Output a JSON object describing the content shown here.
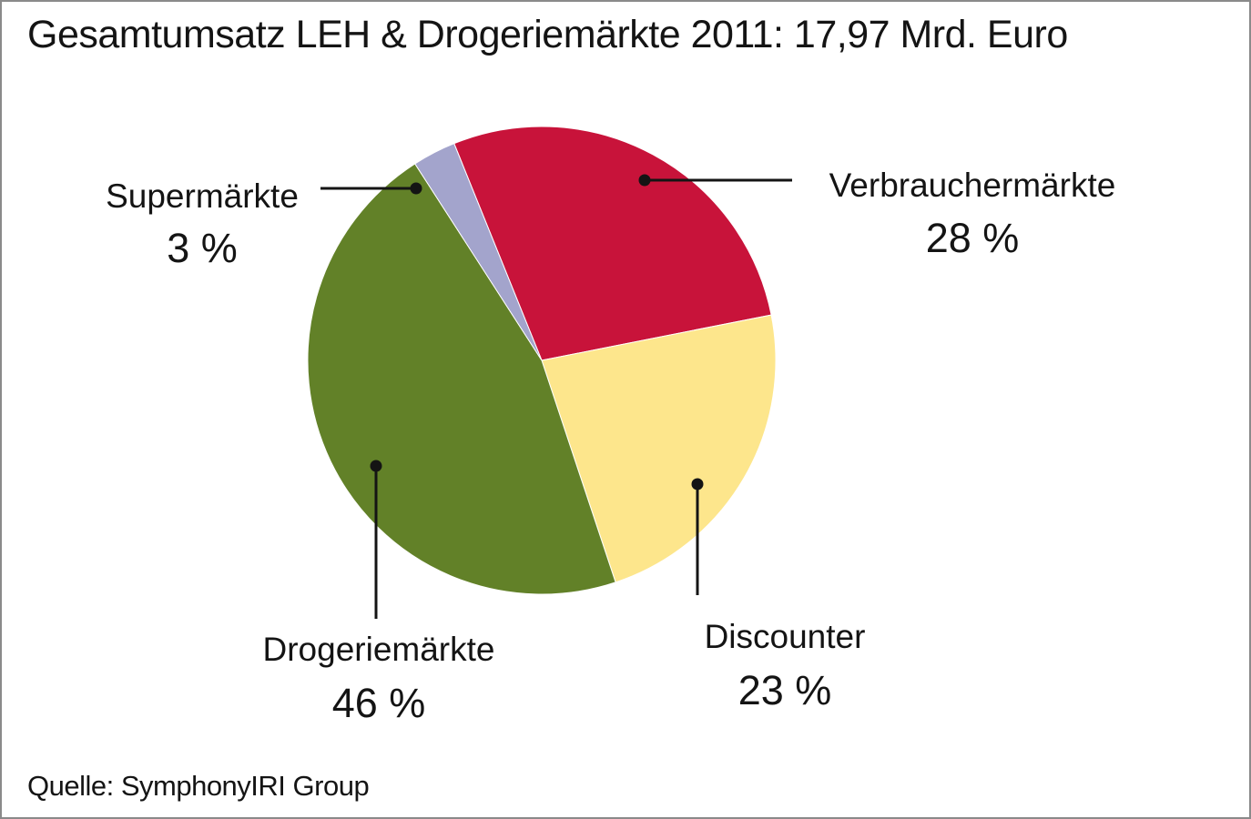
{
  "title": "Gesamtumsatz LEH & Drogeriemärkte 2011: 17,97 Mrd. Euro",
  "source": "Quelle: SymphonyIRI Group",
  "chart_data": {
    "type": "pie",
    "title": "Gesamtumsatz LEH & Drogeriemärkte 2011: 17,97 Mrd. Euro",
    "slices": [
      {
        "name": "Verbrauchermärkte",
        "value": 28,
        "label": "28 %",
        "color": "#c8133a"
      },
      {
        "name": "Discounter",
        "value": 23,
        "label": "23 %",
        "color": "#fde68c"
      },
      {
        "name": "Drogeriemärkte",
        "value": 46,
        "label": "46 %",
        "color": "#628128"
      },
      {
        "name": "Supermärkte",
        "value": 3,
        "label": "3 %",
        "color": "#a3a4cc"
      }
    ]
  }
}
